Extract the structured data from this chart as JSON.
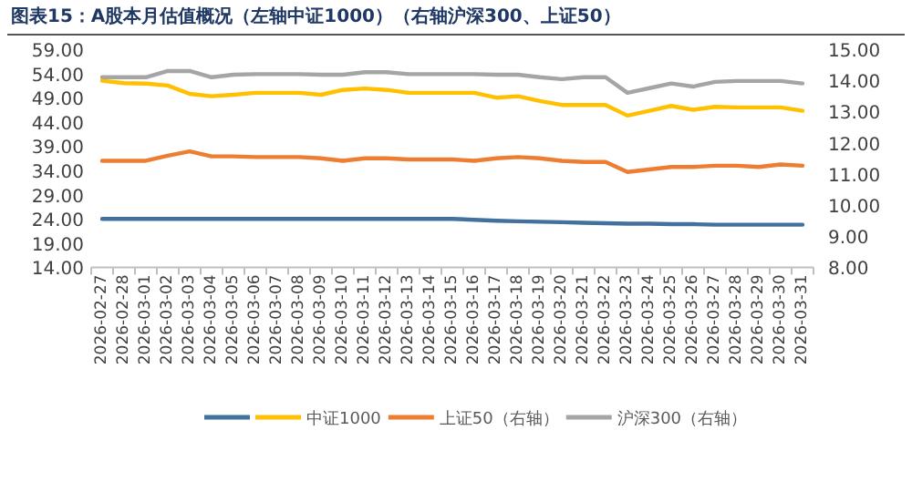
{
  "chart_data": {
    "type": "line",
    "title": "图表15：A股本月估值概况（左轴中证1000）（右轴沪深300、上证50）",
    "categories": [
      "2026-02-27",
      "2026-02-28",
      "2026-03-01",
      "2026-03-02",
      "2026-03-03",
      "2026-03-04",
      "2026-03-05",
      "2026-03-06",
      "2026-03-07",
      "2026-03-08",
      "2026-03-09",
      "2026-03-10",
      "2026-03-11",
      "2026-03-12",
      "2026-03-13",
      "2026-03-14",
      "2026-03-15",
      "2026-03-16",
      "2026-03-17",
      "2026-03-18",
      "2026-03-19",
      "2026-03-20",
      "2026-03-21",
      "2026-03-22",
      "2026-03-23",
      "2026-03-24",
      "2026-03-25",
      "2026-03-26",
      "2026-03-27",
      "2026-03-28",
      "2026-03-29",
      "2026-03-30",
      "2026-03-31"
    ],
    "ylim": [
      14,
      59
    ],
    "yticks": [
      {
        "value": 14,
        "label": "14.00"
      },
      {
        "value": 19,
        "label": "19.00"
      },
      {
        "value": 24,
        "label": "24.00"
      },
      {
        "value": 29,
        "label": "29.00"
      },
      {
        "value": 34,
        "label": "34.00"
      },
      {
        "value": 39,
        "label": "39.00"
      },
      {
        "value": 44,
        "label": "44.00"
      },
      {
        "value": 49,
        "label": "49.00"
      },
      {
        "value": 54,
        "label": "54.00"
      },
      {
        "value": 59,
        "label": "59.00"
      }
    ],
    "y2lim": [
      8,
      15
    ],
    "y2ticks": [
      {
        "value": 8,
        "label": "8.00"
      },
      {
        "value": 9,
        "label": "9.00"
      },
      {
        "value": 10,
        "label": "10.00"
      },
      {
        "value": 11,
        "label": "11.00"
      },
      {
        "value": 12,
        "label": "12.00"
      },
      {
        "value": 13,
        "label": "13.00"
      },
      {
        "value": 14,
        "label": "14.00"
      },
      {
        "value": 15,
        "label": "15.00"
      }
    ],
    "grid": false,
    "legend": "bottom",
    "marker": "none",
    "line_style": "solid",
    "series": [
      {
        "color": "#41719c",
        "values": [
          24,
          24,
          24,
          24,
          24,
          24,
          24,
          24,
          24,
          24,
          24,
          24,
          24,
          24,
          24,
          24,
          24,
          23.8,
          23.6,
          23.5,
          23.4,
          23.3,
          23.2,
          23.1,
          23,
          23,
          22.9,
          22.9,
          22.8,
          22.8,
          22.8,
          22.8,
          22.8
        ]
      },
      {
        "name": "中证1000",
        "color": "#ffc000",
        "values": [
          52.5,
          52,
          51.9,
          51.5,
          49.8,
          49.3,
          49.6,
          50,
          50,
          50,
          49.6,
          50.6,
          50.9,
          50.6,
          50,
          50,
          50,
          50,
          49,
          49.3,
          48.3,
          47.5,
          47.5,
          47.5,
          45.3,
          46.3,
          47.3,
          46.5,
          47.1,
          47,
          47,
          47,
          46.3
        ]
      },
      {
        "name": "上证50（右轴）",
        "color": "#ed7d31",
        "axis": "y2",
        "values": [
          11.42,
          11.42,
          11.42,
          11.58,
          11.72,
          11.56,
          11.56,
          11.54,
          11.54,
          11.54,
          11.5,
          11.42,
          11.5,
          11.5,
          11.46,
          11.46,
          11.46,
          11.42,
          11.5,
          11.54,
          11.5,
          11.42,
          11.38,
          11.38,
          11.06,
          11.14,
          11.22,
          11.22,
          11.26,
          11.26,
          11.22,
          11.3,
          11.26
        ]
      },
      {
        "name": "沪深300（右轴）",
        "color": "#a5a5a5",
        "axis": "y2",
        "values": [
          14.1,
          14.1,
          14.1,
          14.3,
          14.3,
          14.1,
          14.18,
          14.2,
          14.2,
          14.2,
          14.18,
          14.18,
          14.26,
          14.26,
          14.2,
          14.2,
          14.2,
          14.2,
          14.18,
          14.18,
          14.1,
          14.04,
          14.1,
          14.1,
          13.6,
          13.75,
          13.9,
          13.8,
          13.95,
          13.98,
          13.98,
          13.98,
          13.9
        ]
      }
    ]
  }
}
